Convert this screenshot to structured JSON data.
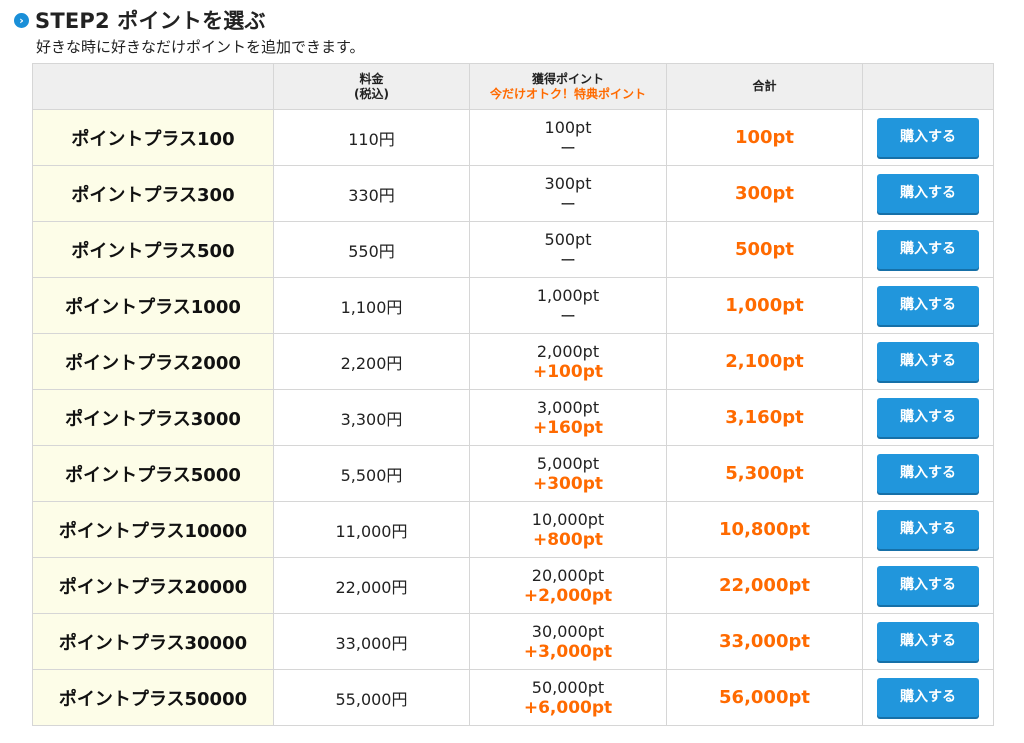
{
  "header": {
    "step_title": "STEP2 ポイントを選ぶ",
    "subtitle": "好きな時に好きなだけポイントを追加できます。"
  },
  "table": {
    "headers": {
      "plan": "",
      "price_line1": "料金",
      "price_line2": "(税込)",
      "acquired_line1": "獲得ポイント",
      "acquired_line2": "今だけオトク！特典ポイント",
      "total": "合計",
      "action": ""
    },
    "rows": [
      {
        "name": "ポイントプラス100",
        "price": "110円",
        "base": "100pt",
        "bonus": "ー",
        "total": "100pt",
        "button": "購入する"
      },
      {
        "name": "ポイントプラス300",
        "price": "330円",
        "base": "300pt",
        "bonus": "ー",
        "total": "300pt",
        "button": "購入する"
      },
      {
        "name": "ポイントプラス500",
        "price": "550円",
        "base": "500pt",
        "bonus": "ー",
        "total": "500pt",
        "button": "購入する"
      },
      {
        "name": "ポイントプラス1000",
        "price": "1,100円",
        "base": "1,000pt",
        "bonus": "ー",
        "total": "1,000pt",
        "button": "購入する"
      },
      {
        "name": "ポイントプラス2000",
        "price": "2,200円",
        "base": "2,000pt",
        "bonus": "+100pt",
        "total": "2,100pt",
        "button": "購入する"
      },
      {
        "name": "ポイントプラス3000",
        "price": "3,300円",
        "base": "3,000pt",
        "bonus": "+160pt",
        "total": "3,160pt",
        "button": "購入する"
      },
      {
        "name": "ポイントプラス5000",
        "price": "5,500円",
        "base": "5,000pt",
        "bonus": "+300pt",
        "total": "5,300pt",
        "button": "購入する"
      },
      {
        "name": "ポイントプラス10000",
        "price": "11,000円",
        "base": "10,000pt",
        "bonus": "+800pt",
        "total": "10,800pt",
        "button": "購入する"
      },
      {
        "name": "ポイントプラス20000",
        "price": "22,000円",
        "base": "20,000pt",
        "bonus": "+2,000pt",
        "total": "22,000pt",
        "button": "購入する"
      },
      {
        "name": "ポイントプラス30000",
        "price": "33,000円",
        "base": "30,000pt",
        "bonus": "+3,000pt",
        "total": "33,000pt",
        "button": "購入する"
      },
      {
        "name": "ポイントプラス50000",
        "price": "55,000円",
        "base": "50,000pt",
        "bonus": "+6,000pt",
        "total": "56,000pt",
        "button": "購入する"
      }
    ]
  },
  "colors": {
    "accent_orange": "#ff6a00",
    "button_blue": "#2196dc",
    "name_cell_bg": "#fdfde8",
    "header_bg": "#efefef"
  },
  "icons": {
    "step_icon": "chevron-right-circle-icon"
  }
}
